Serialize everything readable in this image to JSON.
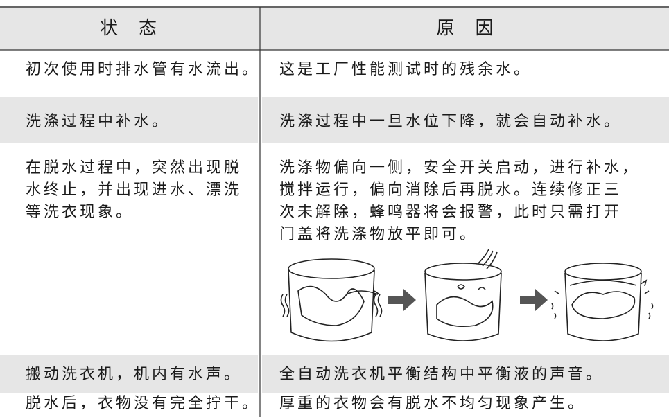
{
  "table": {
    "header": [
      "状　态",
      "原　因"
    ],
    "rows": [
      [
        [
          "初次使用时排水管有水流出。"
        ],
        [
          "这是工厂性能测试时的残余水。"
        ]
      ],
      [
        [
          "洗涤过程中补水。"
        ],
        [
          "洗涤过程中一旦水位下降，就会自动补水。"
        ]
      ],
      [
        [
          "在脱水过程中，突然出现脱",
          "水终止，并出现进水、漂洗",
          "等洗衣现象。"
        ],
        [
          "洗涤物偏向一侧，安全开关启动，进行补水，",
          "搅拌运行，偏向消除后再脱水。连续修正三",
          "次未解除，蜂鸣器将会报警，此时只需打开",
          "门盖将洗涤物放平即可。"
        ]
      ],
      [
        [
          "搬动洗衣机，机内有水声。"
        ],
        [
          "全自动洗衣机平衡结构中平衡液的声音。"
        ]
      ],
      [
        [
          "脱水后，衣物没有完全拧干。"
        ],
        [
          "厚重的衣物会有脱水不均匀现象产生。"
        ]
      ]
    ]
  }
}
